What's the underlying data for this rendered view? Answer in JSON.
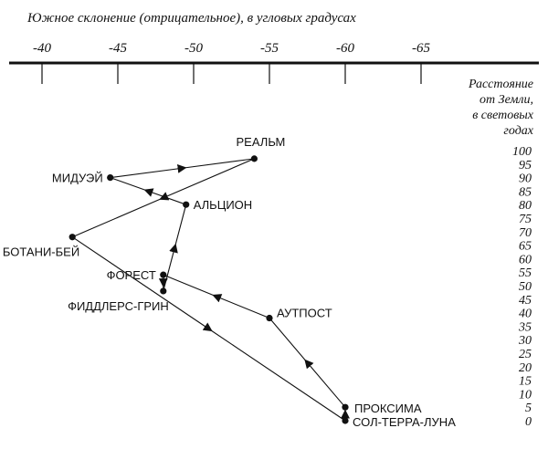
{
  "title": "Южное склонение (отрицательное), в угловых градусах",
  "declination_ticks": [
    "-40",
    "-45",
    "-50",
    "-55",
    "-60",
    "-65"
  ],
  "distance_axis_label": [
    "Расстояние",
    "от Земли,",
    "в световых",
    "годах"
  ],
  "distance_ticks": [
    "100",
    "95",
    "90",
    "85",
    "80",
    "75",
    "70",
    "65",
    "60",
    "55",
    "50",
    "45",
    "40",
    "35",
    "30",
    "25",
    "20",
    "15",
    "10",
    "5",
    "0"
  ],
  "stations": [
    {
      "id": "realm",
      "label": "РЕАЛЬМ",
      "declination": -54.0,
      "distance": 97
    },
    {
      "id": "midway",
      "label": "МИДУЭЙ",
      "declination": -44.5,
      "distance": 90
    },
    {
      "id": "halcyon",
      "label": "АЛЬЦИОН",
      "declination": -49.5,
      "distance": 80
    },
    {
      "id": "botany-bay",
      "label": "БОТАНИ-БЕЙ",
      "declination": -42.0,
      "distance": 68
    },
    {
      "id": "forest",
      "label": "ФОРЕСТ",
      "declination": -48.0,
      "distance": 54
    },
    {
      "id": "fiddlers-green",
      "label": "ФИДДЛЕРС-ГРИН",
      "declination": -48.0,
      "distance": 48
    },
    {
      "id": "outpost",
      "label": "АУТПОСТ",
      "declination": -55.0,
      "distance": 38
    },
    {
      "id": "proxima",
      "label": "ПРОКСИМА",
      "declination": -60.0,
      "distance": 5
    },
    {
      "id": "sol-terra-luna",
      "label": "СОЛ-ТЕРРА-ЛУНА",
      "declination": -60.0,
      "distance": 0
    }
  ],
  "route": [
    "sol-terra-luna",
    "proxima",
    "outpost",
    "forest",
    "fiddlers-green",
    "halcyon",
    "midway",
    "realm",
    "botany-bay",
    "sol-terra-luna"
  ],
  "colors": {
    "ink": "#111111",
    "background": "#ffffff"
  }
}
